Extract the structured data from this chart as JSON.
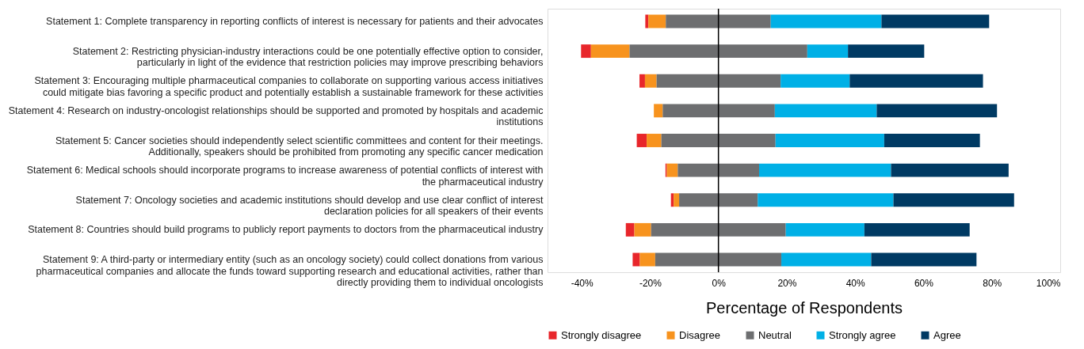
{
  "chart_data": {
    "type": "bar",
    "orientation": "horizontal",
    "xlabel": "Percentage of Respondents",
    "categories": [
      "Statement 1: Complete transparency in reporting conflicts of interest is necessary for patients and their advocates",
      "Statement 2: Restricting physician-industry interactions could be one potentially effective option to consider, particularly in light of the evidence that restriction policies may improve prescribing behaviors",
      "Statement 3: Encouraging multiple pharmaceutical companies to collaborate on supporting various access initiatives could mitigate bias favoring a specific product and potentially establish a sustainable framework for these activities",
      "Statement 4: Research on industry-oncologist relationships should be supported and promoted by hospitals and academic institutions",
      "Statement 5: Cancer societies should independently select scientific committees and content for their meetings. Additionally, speakers should be prohibited from promoting any specific cancer medication",
      "Statement 6: Medical schools should incorporate programs to increase awareness of potential conflicts of interest with the pharmaceutical industry",
      "Statement 7: Oncology societies and academic institutions should develop and use clear conflict of interest declaration policies for all speakers of their events",
      "Statement 8: Countries should build programs to publicly report payments to doctors from the pharmaceutical industry",
      "Statement 9: A third-party or intermediary entity (such as an oncology society) could collect donations from various pharmaceutical companies and allocate the funds toward supporting research and educational activities, rather than directly providing them to individual oncologists"
    ],
    "series": [
      {
        "name": "Strongly disagree",
        "color": "#e8262b",
        "base": [
          -21.4,
          -40.2,
          -23.1,
          null,
          -23.9,
          -15.5,
          -13.9,
          -27.1,
          -25.1
        ],
        "values": [
          0.9,
          2.9,
          1.6,
          null,
          2.9,
          0.4,
          0.8,
          2.5,
          2.1
        ]
      },
      {
        "name": "Disagree",
        "color": "#f7931e",
        "base": [
          -20.5,
          -37.3,
          -21.5,
          -18.9,
          -21.0,
          -15.1,
          -13.1,
          -24.6,
          -23.0
        ],
        "values": [
          5.1,
          11.3,
          3.4,
          2.6,
          4.3,
          3.2,
          1.6,
          4.9,
          4.5
        ]
      },
      {
        "name": "Neutral",
        "color": "#6d6e70",
        "base": [
          -15.4,
          -26.0,
          -18.1,
          -16.3,
          -16.7,
          -11.9,
          -11.5,
          -19.7,
          -18.5
        ],
        "values": [
          30.7,
          52.0,
          36.3,
          32.8,
          33.4,
          23.8,
          23.0,
          39.4,
          36.9
        ]
      },
      {
        "name": "Strongly agree",
        "color": "#00b0e6",
        "base": [
          15.3,
          26.0,
          18.2,
          16.5,
          16.7,
          11.9,
          11.5,
          19.7,
          18.4
        ],
        "values": [
          32.4,
          11.9,
          20.2,
          29.8,
          31.8,
          38.6,
          39.7,
          23.0,
          26.3
        ]
      },
      {
        "name": "Agree",
        "color": "#003a63",
        "base": [
          47.7,
          37.9,
          38.4,
          46.3,
          48.5,
          50.5,
          51.2,
          42.7,
          44.7
        ],
        "values": [
          31.5,
          22.3,
          39.0,
          35.2,
          28.0,
          34.4,
          35.3,
          30.8,
          30.8
        ]
      }
    ],
    "xlim": [
      -50,
      100
    ],
    "xticks": [
      {
        "value": -40,
        "label": "-40%"
      },
      {
        "value": -20,
        "label": "-20%"
      },
      {
        "value": 0,
        "label": "0%"
      },
      {
        "value": 20,
        "label": "20%"
      },
      {
        "value": 40,
        "label": "40%"
      },
      {
        "value": 60,
        "label": "60%"
      },
      {
        "value": 80,
        "label": "80%"
      },
      {
        "value": 100,
        "label": "100%"
      }
    ],
    "ref_lines": [
      {
        "axis": "x",
        "value": 0,
        "color": "#000000"
      }
    ],
    "grid": false,
    "legend": "bottom"
  }
}
